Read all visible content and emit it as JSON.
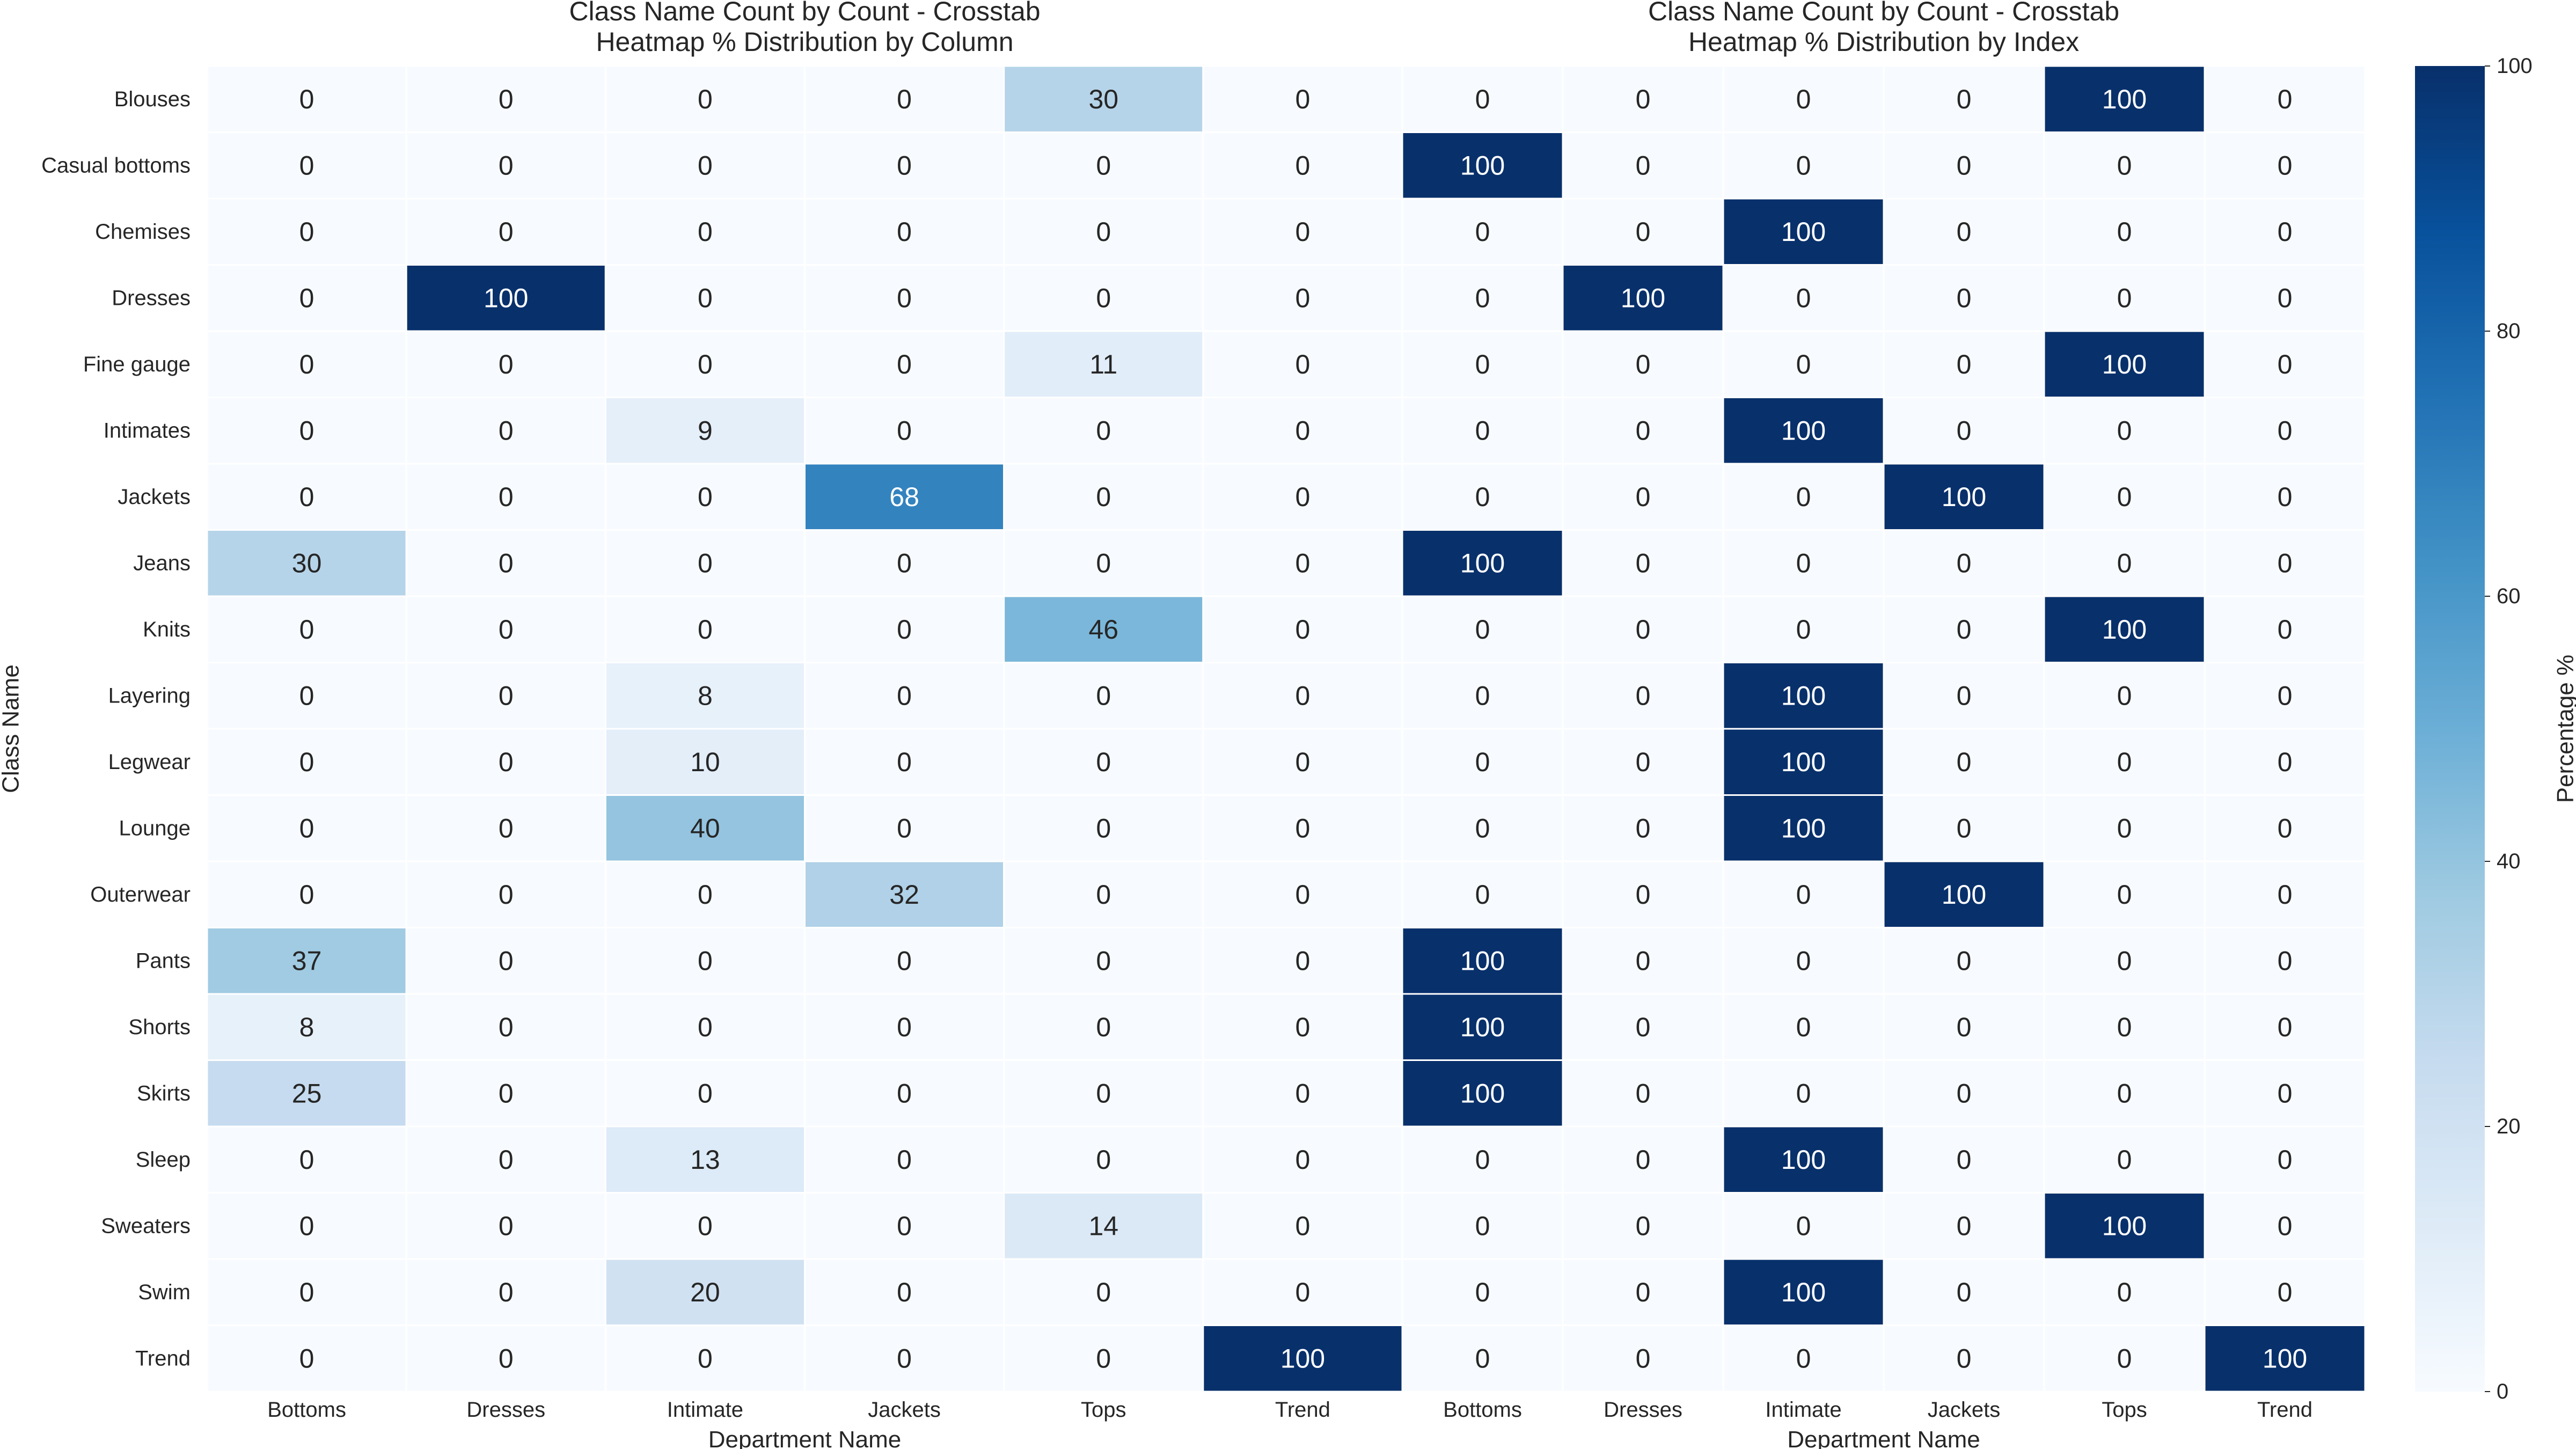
{
  "chart_data": {
    "type": "heatmap",
    "row_axis_label": "Class Name",
    "rows": [
      "Blouses",
      "Casual bottoms",
      "Chemises",
      "Dresses",
      "Fine gauge",
      "Intimates",
      "Jackets",
      "Jeans",
      "Knits",
      "Layering",
      "Legwear",
      "Lounge",
      "Outerwear",
      "Pants",
      "Shorts",
      "Skirts",
      "Sleep",
      "Sweaters",
      "Swim",
      "Trend"
    ],
    "panels": [
      {
        "title_line1": "Class Name Count by Count - Crosstab",
        "title_line2": "Heatmap % Distribution by Column",
        "xlabel": "Department Name",
        "columns": [
          "Bottoms",
          "Dresses",
          "Intimate",
          "Jackets",
          "Tops",
          "Trend"
        ],
        "values": [
          [
            0,
            0,
            0,
            0,
            30,
            0
          ],
          [
            0,
            0,
            0,
            0,
            0,
            0
          ],
          [
            0,
            0,
            0,
            0,
            0,
            0
          ],
          [
            0,
            100,
            0,
            0,
            0,
            0
          ],
          [
            0,
            0,
            0,
            0,
            11,
            0
          ],
          [
            0,
            0,
            9,
            0,
            0,
            0
          ],
          [
            0,
            0,
            0,
            68,
            0,
            0
          ],
          [
            30,
            0,
            0,
            0,
            0,
            0
          ],
          [
            0,
            0,
            0,
            0,
            46,
            0
          ],
          [
            0,
            0,
            8,
            0,
            0,
            0
          ],
          [
            0,
            0,
            10,
            0,
            0,
            0
          ],
          [
            0,
            0,
            40,
            0,
            0,
            0
          ],
          [
            0,
            0,
            0,
            32,
            0,
            0
          ],
          [
            37,
            0,
            0,
            0,
            0,
            0
          ],
          [
            8,
            0,
            0,
            0,
            0,
            0
          ],
          [
            25,
            0,
            0,
            0,
            0,
            0
          ],
          [
            0,
            0,
            13,
            0,
            0,
            0
          ],
          [
            0,
            0,
            0,
            0,
            14,
            0
          ],
          [
            0,
            0,
            20,
            0,
            0,
            0
          ],
          [
            0,
            0,
            0,
            0,
            0,
            100
          ]
        ]
      },
      {
        "title_line1": "Class Name Count by Count - Crosstab",
        "title_line2": "Heatmap % Distribution by Index",
        "xlabel": "Department Name",
        "columns": [
          "Bottoms",
          "Dresses",
          "Intimate",
          "Jackets",
          "Tops",
          "Trend"
        ],
        "values": [
          [
            0,
            0,
            0,
            0,
            100,
            0
          ],
          [
            100,
            0,
            0,
            0,
            0,
            0
          ],
          [
            0,
            0,
            100,
            0,
            0,
            0
          ],
          [
            0,
            100,
            0,
            0,
            0,
            0
          ],
          [
            0,
            0,
            0,
            0,
            100,
            0
          ],
          [
            0,
            0,
            100,
            0,
            0,
            0
          ],
          [
            0,
            0,
            0,
            100,
            0,
            0
          ],
          [
            100,
            0,
            0,
            0,
            0,
            0
          ],
          [
            0,
            0,
            0,
            0,
            100,
            0
          ],
          [
            0,
            0,
            100,
            0,
            0,
            0
          ],
          [
            0,
            0,
            100,
            0,
            0,
            0
          ],
          [
            0,
            0,
            100,
            0,
            0,
            0
          ],
          [
            0,
            0,
            0,
            100,
            0,
            0
          ],
          [
            100,
            0,
            0,
            0,
            0,
            0
          ],
          [
            100,
            0,
            0,
            0,
            0,
            0
          ],
          [
            100,
            0,
            0,
            0,
            0,
            0
          ],
          [
            0,
            0,
            100,
            0,
            0,
            0
          ],
          [
            0,
            0,
            0,
            0,
            100,
            0
          ],
          [
            0,
            0,
            100,
            0,
            0,
            0
          ],
          [
            0,
            0,
            0,
            0,
            0,
            100
          ]
        ]
      }
    ],
    "colorbar": {
      "label": "Percentage %",
      "range": [
        0,
        100
      ],
      "ticks": [
        0,
        20,
        40,
        60,
        80,
        100
      ],
      "colormap": "Blues"
    }
  },
  "colors": {
    "cell_low": "#f7fbff",
    "cell_high": "#08306b",
    "text_dark": "#262626",
    "text_light": "#ffffff",
    "grid": "#ffffff"
  }
}
